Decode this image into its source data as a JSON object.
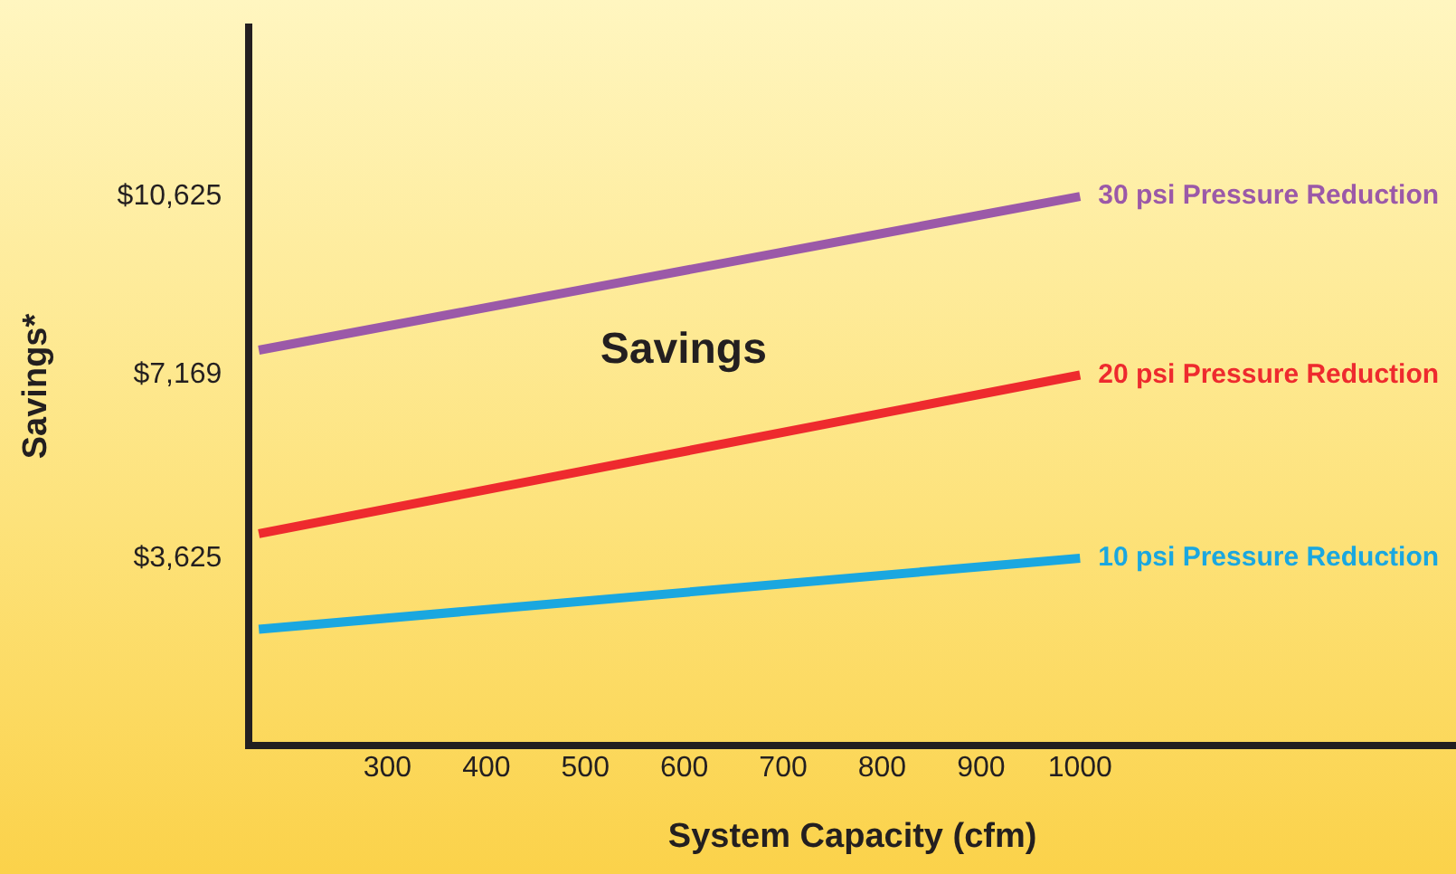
{
  "chart_data": {
    "type": "line",
    "xlabel": "System Capacity (cfm)",
    "ylabel": "Savings*",
    "x": [
      170,
      1000
    ],
    "series": [
      {
        "name": "30 psi Pressure Reduction",
        "color": "#9b59a8",
        "values": [
          7650,
          10625
        ]
      },
      {
        "name": "20 psi Pressure Reduction",
        "color": "#ee2a2e",
        "values": [
          4100,
          7169
        ]
      },
      {
        "name": "10 psi Pressure Reduction",
        "color": "#1aa7e0",
        "values": [
          2250,
          3625
        ]
      }
    ],
    "xlim": [
      160,
      1380
    ],
    "xticks": [
      300,
      400,
      500,
      600,
      700,
      800,
      900,
      1000
    ],
    "ylim": [
      0,
      13900
    ],
    "yticks": [
      {
        "value": 3625,
        "label": "$3,625"
      },
      {
        "value": 7169,
        "label": "$7,169"
      },
      {
        "value": 10625,
        "label": "$10,625"
      }
    ],
    "annotations": [
      "Savings"
    ],
    "grid": false,
    "legend": false,
    "marker": "none",
    "line_style": "solid"
  }
}
